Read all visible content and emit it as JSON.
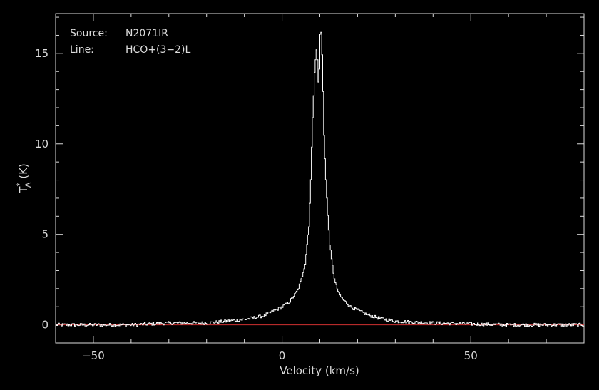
{
  "colors": {
    "background": "#000000",
    "axes": "#dcdcdc",
    "spectrum": "#ffffff",
    "baseline": "#d03030"
  },
  "annotations": {
    "source_label": "Source:",
    "source_value": "N2071IR",
    "line_label": "Line:",
    "line_value": "HCO+(3−2)L"
  },
  "chart_data": {
    "type": "line",
    "title": "",
    "xlabel": "Velocity (km/s)",
    "ylabel_main": "T",
    "ylabel_sup": "*",
    "ylabel_sub": "A",
    "ylabel_unit": " (K)",
    "xlim": [
      -60,
      80
    ],
    "ylim": [
      -1,
      17.2
    ],
    "x_ticks": [
      -50,
      0,
      50
    ],
    "x_tick_labels": [
      "−50",
      "0",
      "50"
    ],
    "y_ticks": [
      0,
      5,
      10,
      15
    ],
    "y_tick_labels": [
      "0",
      "5",
      "10",
      "15"
    ],
    "grid": false,
    "legend": "none",
    "series": [
      {
        "x": [
          -60,
          -50,
          -40,
          -30,
          -20,
          -15,
          -10,
          -5,
          -2,
          0,
          2,
          4,
          5,
          6,
          7,
          7.5,
          8,
          8.5,
          9,
          9.2,
          9.4,
          9.6,
          9.8,
          10,
          10.2,
          10.4,
          10.6,
          10.8,
          11,
          11.5,
          12,
          12.5,
          13,
          13.5,
          14,
          15,
          16,
          17,
          18,
          20,
          22,
          25,
          30,
          40,
          50,
          60,
          70,
          80
        ],
        "y": [
          0.0,
          0.0,
          0.0,
          0.1,
          0.1,
          0.2,
          0.3,
          0.5,
          0.8,
          1.0,
          1.3,
          1.9,
          2.5,
          3.4,
          5.5,
          8.0,
          11.5,
          14.0,
          15.2,
          15.0,
          13.5,
          13.3,
          14.5,
          16.0,
          16.3,
          15.8,
          14.0,
          12.5,
          10.5,
          8.0,
          6.0,
          4.5,
          3.6,
          2.9,
          2.3,
          1.7,
          1.4,
          1.2,
          1.0,
          0.8,
          0.6,
          0.4,
          0.2,
          0.1,
          0.05,
          0.0,
          0.0,
          0.0
        ]
      }
    ],
    "baseline": 0
  }
}
